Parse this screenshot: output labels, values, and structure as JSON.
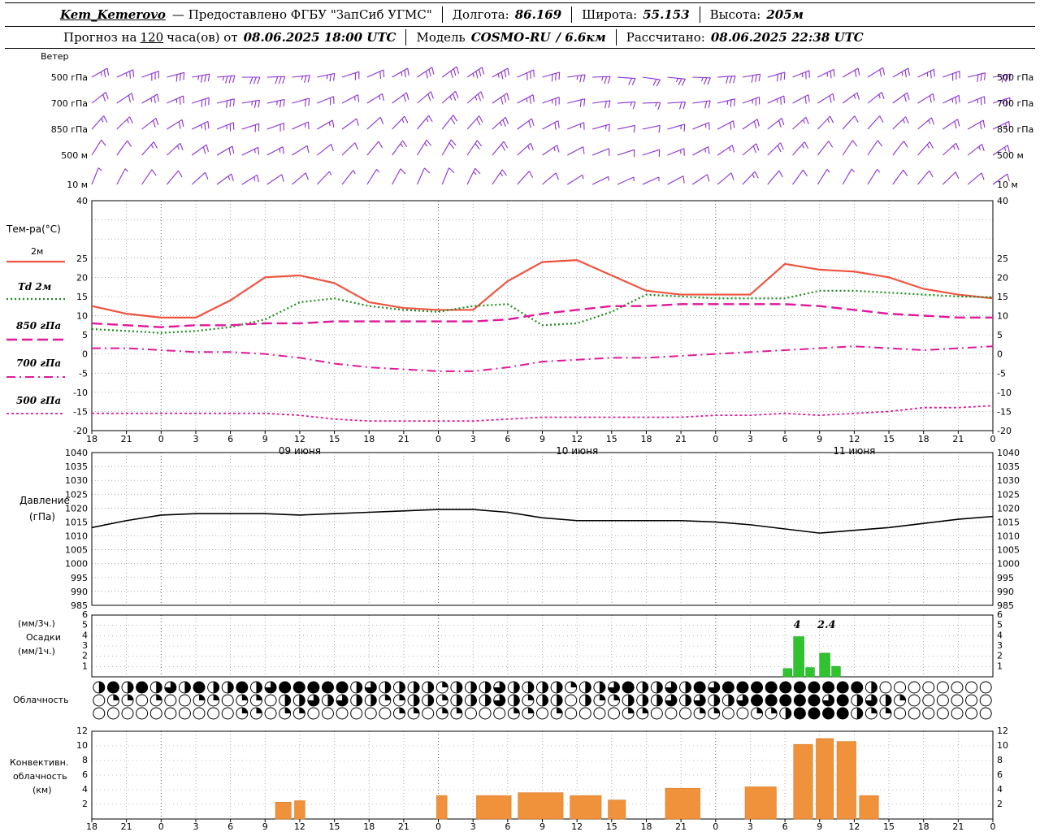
{
  "header": {
    "station": "Kem_Kemerovo",
    "provider": "— Предоставлено ФГБУ \"ЗапСиб УГМС\"",
    "lon_label": "Долгота:",
    "lon": "86.169",
    "lat_label": "Широта:",
    "lat": "55.153",
    "alt_label": "Высота:",
    "alt": "205м",
    "forecast_prefix": "Прогноз на",
    "forecast_hours": "120",
    "forecast_suffix": "часа(ов) от",
    "run_datetime": "08.06.2025 18:00 UTC",
    "model_label": "Модель",
    "model": "COSMO-RU",
    "model_res": "/ 6.6км",
    "calc_label": "Рассчитано:",
    "calc_datetime": "08.06.2025 22:38 UTC"
  },
  "labels": {
    "wind_title": "Ветер",
    "wind_levels": [
      "500 гПа",
      "700 гПа",
      "850 гПа",
      "500 м",
      "10 м"
    ],
    "temp_title": "Тем-ра(°C)",
    "legend": [
      "2м",
      "Td 2м",
      "850 гПа",
      "700 гПа",
      "500 гПа"
    ],
    "pressure_title_1": "Давление",
    "pressure_title_2": "(гПа)",
    "precip_1": "(мм/3ч.)",
    "precip_2": "Осадки",
    "precip_3": "(мм/1ч.)",
    "cloud_title": "Облачность",
    "conv_1": "Конвективн.",
    "conv_2": "облачность",
    "conv_3": "(км)"
  },
  "colors": {
    "barb": "#8b2fd2",
    "t2m": "#ef5440",
    "td": "#1f8c1f",
    "magenta": "#e0189a",
    "pressure": "#000000",
    "precip": "#2fc42f",
    "convective": "#f0913c",
    "grid": "#888888",
    "frame": "#000000"
  },
  "chart_data": {
    "axis": {
      "hours": [
        "18",
        "21",
        "0",
        "3",
        "6",
        "9",
        "12",
        "15",
        "18",
        "21",
        "0",
        "3",
        "6",
        "9",
        "12",
        "15",
        "18",
        "21",
        "0",
        "3",
        "6",
        "9",
        "12",
        "15",
        "18",
        "21",
        "0"
      ],
      "dates": [
        {
          "label": "09 июня",
          "slot": 6
        },
        {
          "label": "10 июня",
          "slot": 14
        },
        {
          "label": "11 июня",
          "slot": 22
        }
      ]
    },
    "wind": {
      "type": "wind-barbs",
      "rows": [
        {
          "label": "500 гПа",
          "angles": [
            240,
            245,
            250,
            255,
            260,
            265,
            270,
            268,
            264,
            258,
            252,
            246,
            240,
            236,
            234,
            236,
            240,
            246,
            254,
            262,
            268,
            274,
            278,
            276,
            272,
            266,
            260,
            254,
            248,
            244,
            240,
            238,
            240,
            244,
            250,
            256,
            260
          ],
          "speeds": [
            12.5,
            12.5,
            15,
            15,
            17.5,
            17.5,
            15,
            15,
            12.5,
            12.5,
            10,
            10,
            12.5,
            15,
            15,
            17.5,
            17.5,
            15,
            15,
            12.5,
            12.5,
            10,
            10,
            12.5,
            12.5,
            15,
            15,
            15,
            12.5,
            12.5,
            10,
            10,
            12.5,
            12.5,
            15,
            15,
            15
          ]
        },
        {
          "label": "700 гПа",
          "angles": [
            232,
            236,
            240,
            246,
            252,
            256,
            260,
            258,
            254,
            248,
            242,
            238,
            234,
            230,
            228,
            230,
            236,
            242,
            250,
            256,
            262,
            266,
            268,
            266,
            262,
            256,
            250,
            246,
            242,
            238,
            234,
            232,
            234,
            238,
            244,
            248,
            252
          ],
          "speeds": [
            10,
            10,
            12.5,
            12.5,
            15,
            15,
            12.5,
            12.5,
            10,
            10,
            7.5,
            7.5,
            10,
            10,
            12.5,
            12.5,
            15,
            12.5,
            12.5,
            10,
            10,
            7.5,
            7.5,
            10,
            10,
            12.5,
            12.5,
            12.5,
            10,
            10,
            7.5,
            7.5,
            10,
            10,
            12.5,
            12.5,
            12.5
          ]
        },
        {
          "label": "850 гПа",
          "angles": [
            222,
            226,
            232,
            238,
            244,
            248,
            252,
            250,
            246,
            240,
            234,
            228,
            224,
            220,
            218,
            222,
            228,
            234,
            242,
            248,
            254,
            258,
            258,
            254,
            248,
            242,
            236,
            232,
            228,
            224,
            222,
            222,
            226,
            230,
            236,
            240,
            244
          ],
          "speeds": [
            7.5,
            7.5,
            10,
            10,
            12.5,
            12.5,
            10,
            10,
            7.5,
            7.5,
            5,
            5,
            7.5,
            7.5,
            10,
            10,
            12.5,
            10,
            10,
            7.5,
            7.5,
            5,
            5,
            7.5,
            7.5,
            10,
            10,
            10,
            7.5,
            7.5,
            5,
            5,
            7.5,
            7.5,
            10,
            10,
            10
          ]
        },
        {
          "label": "500 м",
          "angles": [
            212,
            216,
            222,
            228,
            234,
            240,
            244,
            242,
            238,
            232,
            226,
            220,
            216,
            212,
            210,
            214,
            220,
            228,
            236,
            242,
            248,
            252,
            252,
            248,
            242,
            236,
            230,
            226,
            222,
            218,
            214,
            214,
            218,
            222,
            228,
            232,
            236
          ],
          "speeds": [
            5,
            5,
            7.5,
            7.5,
            10,
            10,
            7.5,
            7.5,
            5,
            5,
            5,
            5,
            7.5,
            7.5,
            10,
            10,
            10,
            7.5,
            7.5,
            5,
            5,
            5,
            5,
            7.5,
            7.5,
            7.5,
            10,
            10,
            7.5,
            5,
            5,
            5,
            5,
            7.5,
            7.5,
            7.5,
            7.5
          ]
        },
        {
          "label": "10 м",
          "angles": [
            202,
            208,
            214,
            220,
            228,
            234,
            238,
            236,
            230,
            224,
            218,
            212,
            208,
            204,
            202,
            206,
            214,
            222,
            230,
            238,
            244,
            246,
            246,
            242,
            236,
            230,
            224,
            220,
            216,
            212,
            210,
            212,
            216,
            220,
            226,
            230,
            234
          ],
          "speeds": [
            2.5,
            2.5,
            5,
            5,
            5,
            7.5,
            7.5,
            5,
            5,
            2.5,
            2.5,
            2.5,
            5,
            5,
            5,
            7.5,
            7.5,
            5,
            5,
            2.5,
            2.5,
            2.5,
            2.5,
            5,
            5,
            5,
            7.5,
            5,
            5,
            2.5,
            2.5,
            2.5,
            5,
            5,
            5,
            5,
            5
          ]
        }
      ]
    },
    "temperature": {
      "type": "line",
      "title": "Тем-ра(°C)",
      "ylim": [
        -20,
        40
      ],
      "yticks": [
        40,
        25,
        20,
        15,
        10,
        5,
        0,
        -5,
        -10,
        -15,
        -20
      ],
      "series": [
        {
          "name": "2м",
          "style": "solid",
          "color_key": "t2m",
          "values": [
            12.5,
            10.5,
            9.5,
            9.5,
            14,
            20,
            20.5,
            18.5,
            13.5,
            12,
            11.5,
            11.5,
            19,
            24,
            24.5,
            20.5,
            16.5,
            15.5,
            15.5,
            15.5,
            23.5,
            22,
            21.5,
            20,
            17,
            15.5,
            14.5
          ]
        },
        {
          "name": "Td 2м",
          "style": "dotted",
          "color_key": "td",
          "values": [
            6.5,
            6,
            5.5,
            6,
            7,
            9,
            13.5,
            14.5,
            12.5,
            11.5,
            11,
            12.5,
            13,
            7.5,
            8,
            11,
            15.5,
            15,
            14.5,
            14.5,
            14.5,
            16.5,
            16.5,
            16,
            15.5,
            15,
            14.8
          ]
        },
        {
          "name": "850 гПа",
          "style": "dashed",
          "color_key": "magenta",
          "values": [
            8,
            7.5,
            7,
            7.5,
            7.5,
            8,
            8,
            8.5,
            8.5,
            8.5,
            8.5,
            8.5,
            9,
            10.5,
            11.5,
            12.5,
            12.5,
            13,
            13,
            13,
            13,
            12.5,
            11.5,
            10.5,
            10,
            9.5,
            9.5
          ]
        },
        {
          "name": "700 гПа",
          "style": "dashdot",
          "color_key": "magenta",
          "values": [
            1.5,
            1.5,
            1,
            0.5,
            0.5,
            0,
            -1,
            -2.5,
            -3.5,
            -4,
            -4.5,
            -4.5,
            -3.5,
            -2,
            -1.5,
            -1,
            -1,
            -0.5,
            0,
            0.5,
            1,
            1.5,
            2,
            1.5,
            1,
            1.5,
            2
          ]
        },
        {
          "name": "500 гПа",
          "style": "fine-dashed",
          "color_key": "magenta",
          "values": [
            -15.5,
            -15.5,
            -15.5,
            -15.5,
            -15.5,
            -15.5,
            -16,
            -17,
            -17.5,
            -17.5,
            -17.5,
            -17.5,
            -17,
            -16.5,
            -16.5,
            -16.5,
            -16.5,
            -16.5,
            -16,
            -16,
            -15.5,
            -16,
            -15.5,
            -15,
            -14,
            -14,
            -13.5
          ]
        }
      ]
    },
    "pressure": {
      "type": "line",
      "title": "Давление (гПа)",
      "ylim": [
        985,
        1040
      ],
      "yticks": [
        1040,
        1035,
        1030,
        1025,
        1020,
        1015,
        1010,
        1005,
        1000,
        995,
        990,
        985
      ],
      "values": [
        1013,
        1015.5,
        1017.5,
        1018,
        1018,
        1018,
        1017.5,
        1018,
        1018.5,
        1019,
        1019.5,
        1019.5,
        1018.5,
        1016.5,
        1015.5,
        1015.5,
        1015.5,
        1015.5,
        1015,
        1014,
        1012.5,
        1011,
        1012,
        1013,
        1014.5,
        1016,
        1017
      ]
    },
    "precipitation": {
      "type": "bar",
      "title": "Осадки (мм/3ч., мм/1ч.)",
      "ylim": [
        0,
        6
      ],
      "yticks": [
        6,
        5,
        4,
        3,
        2,
        1
      ],
      "bars": [
        {
          "slot": 19.95,
          "w": 0.25,
          "value": 0.8
        },
        {
          "slot": 20.25,
          "w": 0.3,
          "value": 3.9
        },
        {
          "slot": 20.6,
          "w": 0.25,
          "value": 0.9
        },
        {
          "slot": 21.0,
          "w": 0.3,
          "value": 2.3
        },
        {
          "slot": 21.35,
          "w": 0.25,
          "value": 1.0
        }
      ],
      "labels": [
        {
          "text": "4",
          "slot": 20.35
        },
        {
          "text": "2.4",
          "slot": 21.2
        }
      ]
    },
    "cloudiness": {
      "type": "cloud-cover",
      "title": "Облачность",
      "fill_scale": "quarters 0-4",
      "rows": [
        "242423242242344444232222122232222122342232434444444444200000000",
        "011010011011022323221122122232122021122232322344444342321000000",
        "000000000011011000000110110001101000011000110011244442110000000"
      ]
    },
    "convective": {
      "type": "bar",
      "title": "Конвективн. облачность (км)",
      "ylim": [
        0,
        12
      ],
      "yticks": [
        12,
        10,
        8,
        6,
        4,
        2
      ],
      "bars": [
        {
          "slot": 5.3,
          "w": 0.45,
          "value": 2.3
        },
        {
          "slot": 5.85,
          "w": 0.3,
          "value": 2.5
        },
        {
          "slot": 9.95,
          "w": 0.3,
          "value": 3.2
        },
        {
          "slot": 11.1,
          "w": 1.0,
          "value": 3.2
        },
        {
          "slot": 12.3,
          "w": 1.3,
          "value": 3.6
        },
        {
          "slot": 13.8,
          "w": 0.9,
          "value": 3.2
        },
        {
          "slot": 14.9,
          "w": 0.5,
          "value": 2.6
        },
        {
          "slot": 16.55,
          "w": 1.0,
          "value": 4.2
        },
        {
          "slot": 18.85,
          "w": 0.9,
          "value": 4.4
        },
        {
          "slot": 20.25,
          "w": 0.55,
          "value": 10.2
        },
        {
          "slot": 20.9,
          "w": 0.5,
          "value": 11.0
        },
        {
          "slot": 21.5,
          "w": 0.55,
          "value": 10.6
        },
        {
          "slot": 22.15,
          "w": 0.55,
          "value": 3.2
        }
      ]
    }
  }
}
